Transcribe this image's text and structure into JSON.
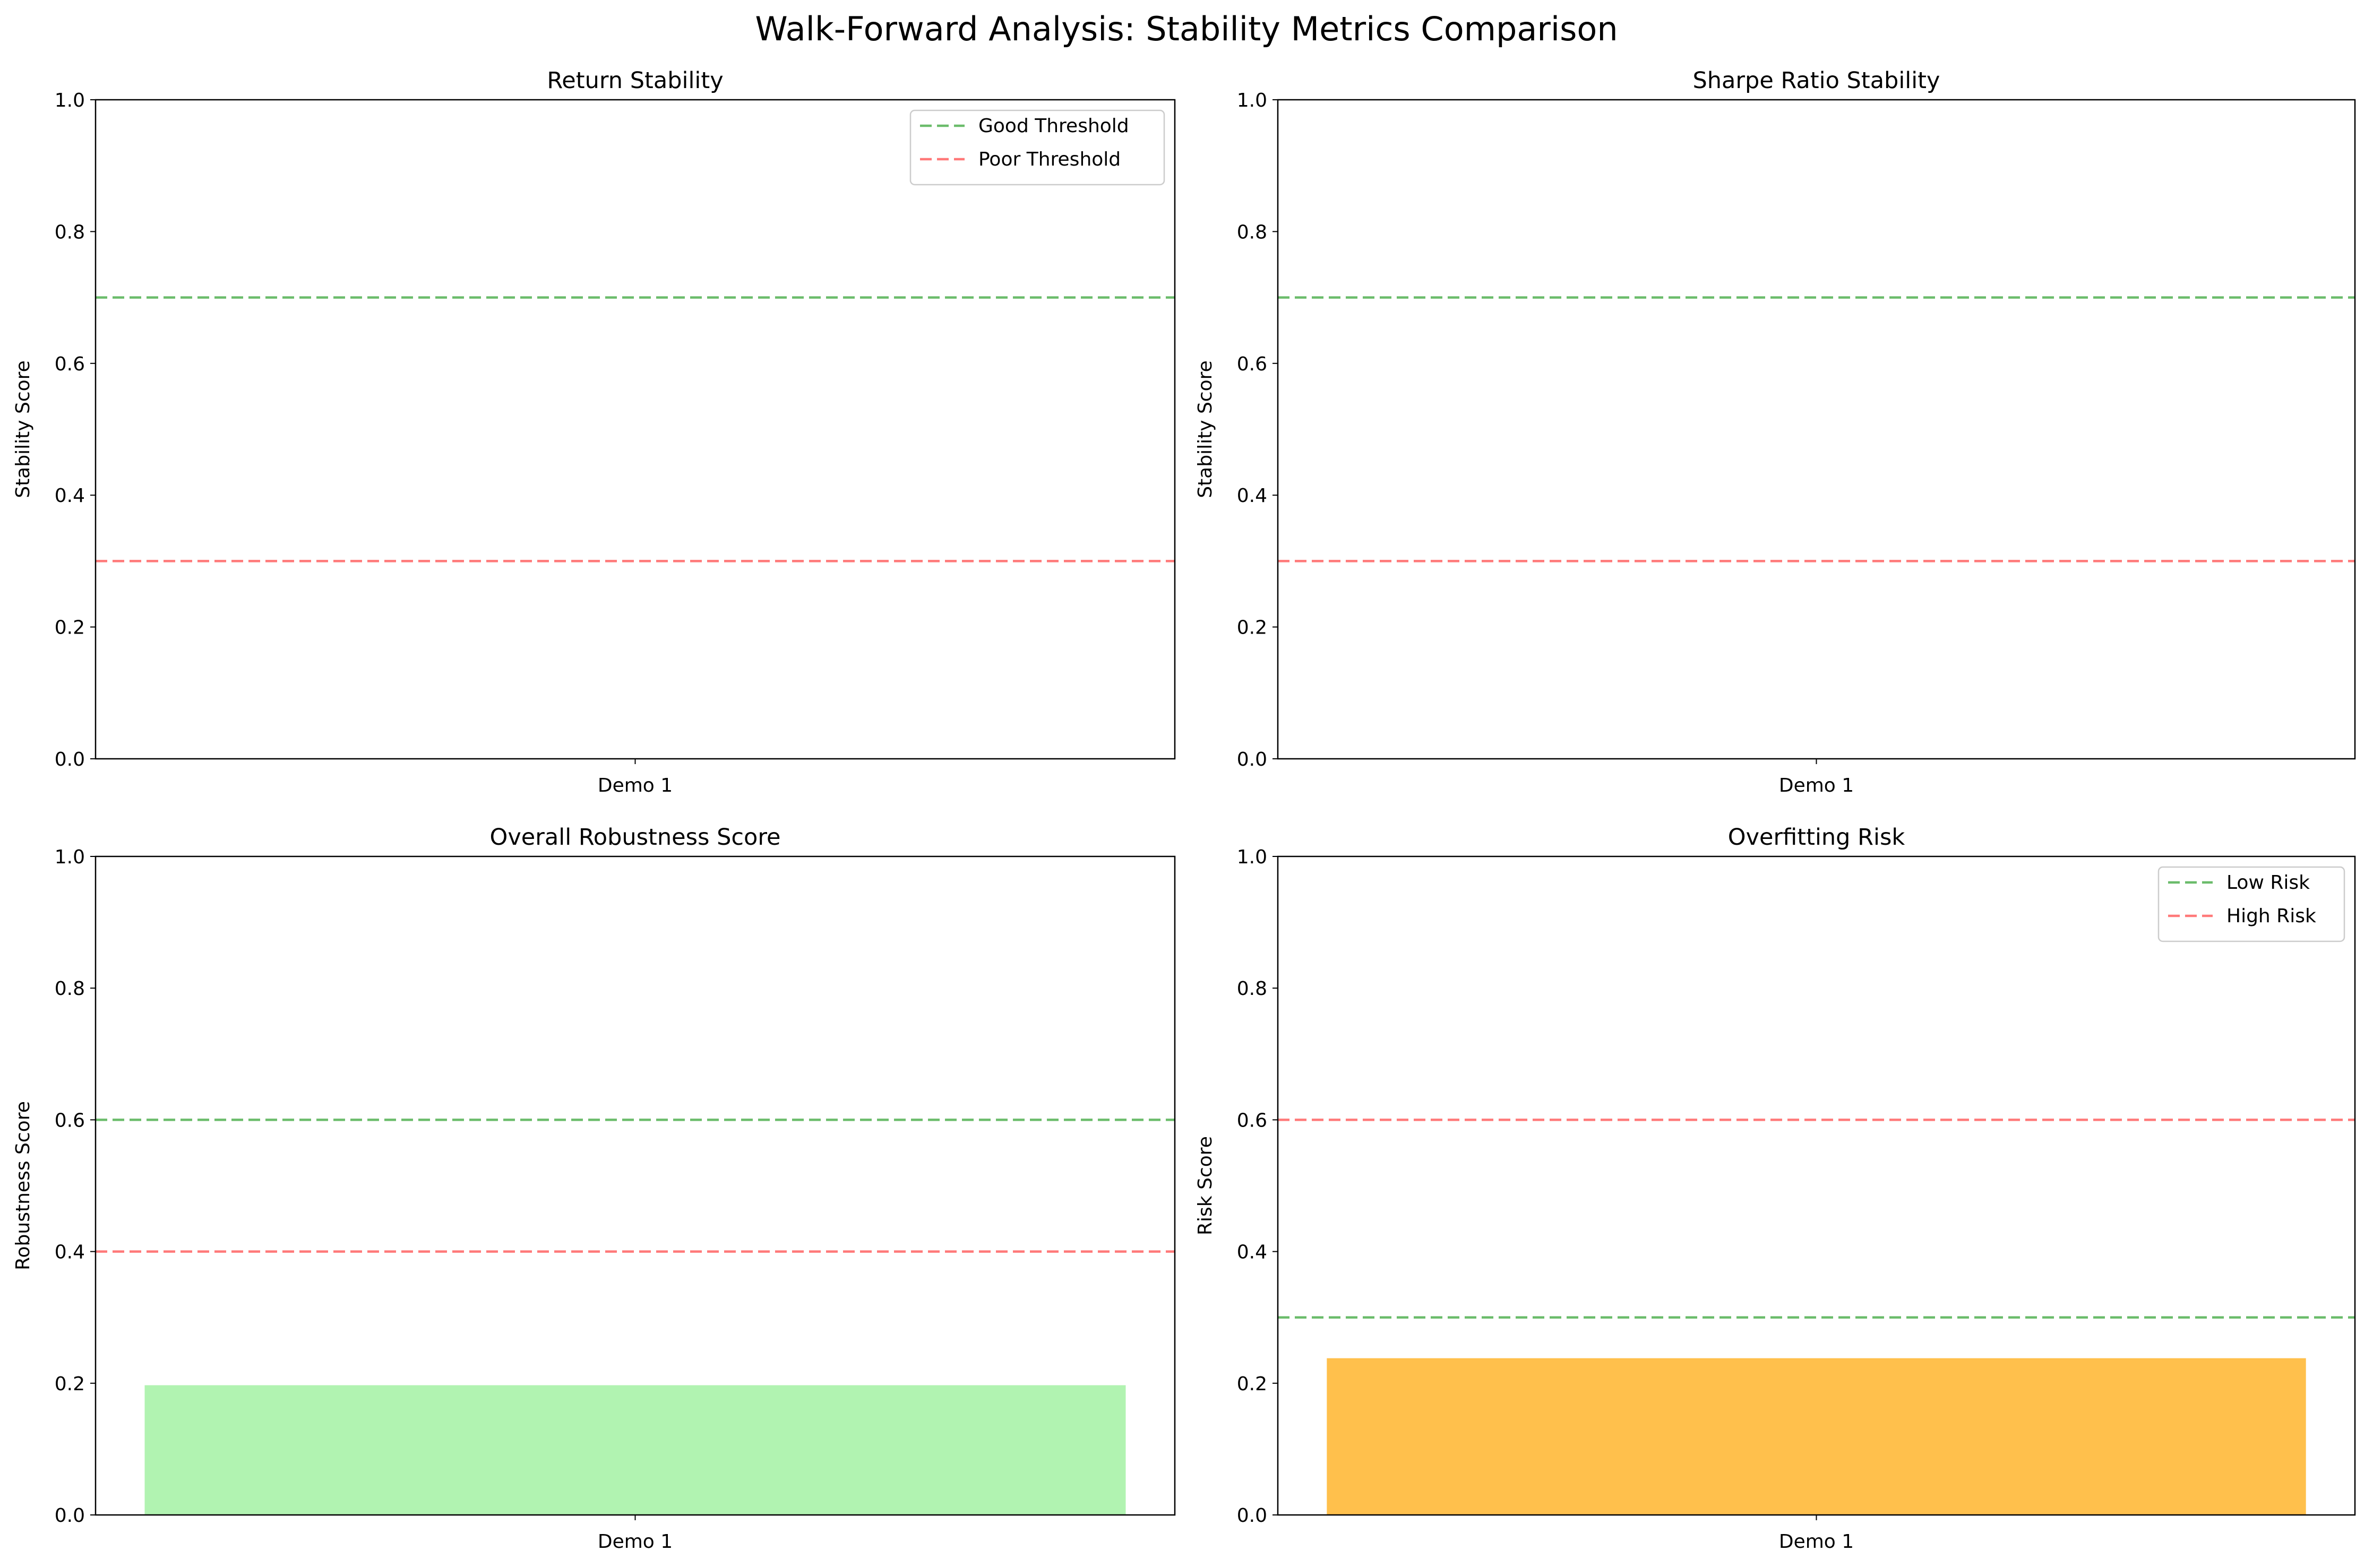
{
  "title": "Walk-Forward Analysis: Stability Metrics Comparison",
  "chart_data": [
    {
      "type": "bar",
      "title": "Return Stability",
      "xlabel": "",
      "ylabel": "Stability Score",
      "ylim": [
        0,
        1
      ],
      "yticks": [
        "0.0",
        "0.2",
        "0.4",
        "0.6",
        "0.8",
        "1.0"
      ],
      "categories": [
        "Demo 1"
      ],
      "values": [
        0
      ],
      "bar_color": "#90ee90",
      "thresholds": [
        {
          "name": "Good Threshold",
          "value": 0.7,
          "color": "#2ca02c"
        },
        {
          "name": "Poor Threshold",
          "value": 0.3,
          "color": "#ff4040"
        }
      ],
      "legend": "top-right",
      "grid": false
    },
    {
      "type": "bar",
      "title": "Sharpe Ratio Stability",
      "xlabel": "",
      "ylabel": "Stability Score",
      "ylim": [
        0,
        1
      ],
      "yticks": [
        "0.0",
        "0.2",
        "0.4",
        "0.6",
        "0.8",
        "1.0"
      ],
      "categories": [
        "Demo 1"
      ],
      "values": [
        0
      ],
      "bar_color": "#90ee90",
      "thresholds": [
        {
          "name": "",
          "value": 0.7,
          "color": "#2ca02c"
        },
        {
          "name": "",
          "value": 0.3,
          "color": "#ff4040"
        }
      ],
      "legend": "none",
      "grid": false
    },
    {
      "type": "bar",
      "title": "Overall Robustness Score",
      "xlabel": "",
      "ylabel": "Robustness Score",
      "ylim": [
        0,
        1
      ],
      "yticks": [
        "0.0",
        "0.2",
        "0.4",
        "0.6",
        "0.8",
        "1.0"
      ],
      "categories": [
        "Demo 1"
      ],
      "values": [
        0.197
      ],
      "bar_color": "#90ee90",
      "thresholds": [
        {
          "name": "",
          "value": 0.6,
          "color": "#2ca02c"
        },
        {
          "name": "",
          "value": 0.4,
          "color": "#ff4040"
        }
      ],
      "legend": "none",
      "grid": false
    },
    {
      "type": "bar",
      "title": "Overfitting Risk",
      "xlabel": "",
      "ylabel": "Risk Score",
      "ylim": [
        0,
        1
      ],
      "yticks": [
        "0.0",
        "0.2",
        "0.4",
        "0.6",
        "0.8",
        "1.0"
      ],
      "categories": [
        "Demo 1"
      ],
      "values": [
        0.238
      ],
      "bar_color": "#ffa500",
      "thresholds": [
        {
          "name": "Low Risk",
          "value": 0.3,
          "color": "#2ca02c"
        },
        {
          "name": "High Risk",
          "value": 0.6,
          "color": "#ff4040"
        }
      ],
      "legend": "top-right",
      "grid": false
    }
  ]
}
